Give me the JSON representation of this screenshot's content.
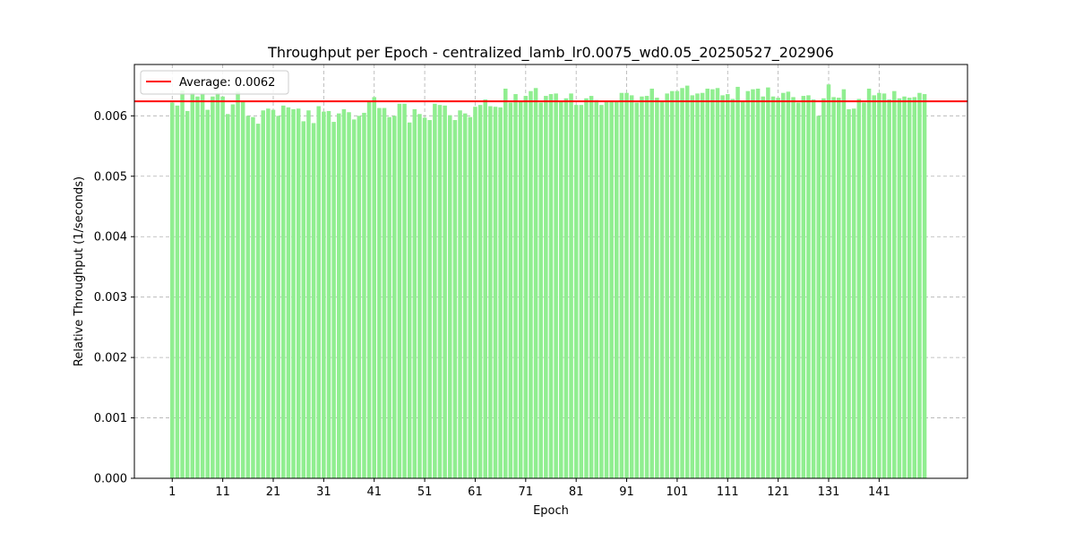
{
  "chart_data": {
    "type": "bar",
    "title": "Throughput per Epoch - centralized_lamb_lr0.0075_wd0.05_20250527_202906",
    "xlabel": "Epoch",
    "ylabel": "Relative Throughput (1/seconds)",
    "ylim": [
      0,
      0.00685
    ],
    "xlim": [
      -6.5,
      158.5
    ],
    "y_ticks": [
      0.0,
      0.001,
      0.002,
      0.003,
      0.004,
      0.005,
      0.006
    ],
    "y_tick_labels": [
      "0.000",
      "0.001",
      "0.002",
      "0.003",
      "0.004",
      "0.005",
      "0.006"
    ],
    "x_ticks": [
      1,
      11,
      21,
      31,
      41,
      51,
      61,
      71,
      81,
      91,
      101,
      111,
      121,
      131,
      141
    ],
    "x_tick_labels": [
      "1",
      "11",
      "21",
      "31",
      "41",
      "51",
      "61",
      "71",
      "81",
      "91",
      "101",
      "111",
      "121",
      "131",
      "141"
    ],
    "grid": true,
    "bar_color": "#90ee90",
    "average": {
      "value": 0.00624,
      "label": "Average: 0.0062",
      "color": "#ff0000"
    },
    "legend_position": "top-left",
    "x": [
      1,
      2,
      3,
      4,
      5,
      6,
      7,
      8,
      9,
      10,
      11,
      12,
      13,
      14,
      15,
      16,
      17,
      18,
      19,
      20,
      21,
      22,
      23,
      24,
      25,
      26,
      27,
      28,
      29,
      30,
      31,
      32,
      33,
      34,
      35,
      36,
      37,
      38,
      39,
      40,
      41,
      42,
      43,
      44,
      45,
      46,
      47,
      48,
      49,
      50,
      51,
      52,
      53,
      54,
      55,
      56,
      57,
      58,
      59,
      60,
      61,
      62,
      63,
      64,
      65,
      66,
      67,
      68,
      69,
      70,
      71,
      72,
      73,
      74,
      75,
      76,
      77,
      78,
      79,
      80,
      81,
      82,
      83,
      84,
      85,
      86,
      87,
      88,
      89,
      90,
      91,
      92,
      93,
      94,
      95,
      96,
      97,
      98,
      99,
      100,
      101,
      102,
      103,
      104,
      105,
      106,
      107,
      108,
      109,
      110,
      111,
      112,
      113,
      114,
      115,
      116,
      117,
      118,
      119,
      120,
      121,
      122,
      123,
      124,
      125,
      126,
      127,
      128,
      129,
      130,
      131,
      132,
      133,
      134,
      135,
      136,
      137,
      138,
      139,
      140,
      141,
      142,
      143,
      144,
      145,
      146,
      147,
      148,
      149,
      150
    ],
    "values": [
      0.00622,
      0.00617,
      0.00642,
      0.00608,
      0.00638,
      0.00632,
      0.00636,
      0.0061,
      0.00632,
      0.00638,
      0.00632,
      0.00603,
      0.00619,
      0.0064,
      0.00623,
      0.006,
      0.00598,
      0.00587,
      0.00609,
      0.00612,
      0.0061,
      0.006,
      0.00617,
      0.00614,
      0.00611,
      0.00612,
      0.00591,
      0.00609,
      0.00588,
      0.00616,
      0.00607,
      0.00608,
      0.0059,
      0.00604,
      0.00611,
      0.00606,
      0.00594,
      0.006,
      0.00605,
      0.00625,
      0.00631,
      0.00613,
      0.00613,
      0.00598,
      0.006,
      0.0062,
      0.0062,
      0.00589,
      0.00611,
      0.00603,
      0.00597,
      0.00593,
      0.0062,
      0.00618,
      0.00617,
      0.00601,
      0.00593,
      0.00609,
      0.00604,
      0.00598,
      0.00615,
      0.00618,
      0.00627,
      0.00616,
      0.00615,
      0.00614,
      0.00645,
      0.00622,
      0.00636,
      0.00624,
      0.00633,
      0.00641,
      0.00646,
      0.00622,
      0.00633,
      0.00636,
      0.00637,
      0.00624,
      0.00629,
      0.00637,
      0.00618,
      0.00618,
      0.00629,
      0.00633,
      0.00626,
      0.00618,
      0.00624,
      0.00625,
      0.00624,
      0.00638,
      0.00638,
      0.00634,
      0.00622,
      0.00632,
      0.00633,
      0.00645,
      0.0063,
      0.00623,
      0.00637,
      0.00641,
      0.00641,
      0.00646,
      0.0065,
      0.00634,
      0.00637,
      0.00638,
      0.00645,
      0.00644,
      0.00646,
      0.00634,
      0.00636,
      0.00628,
      0.00648,
      0.00623,
      0.00641,
      0.00644,
      0.00645,
      0.00632,
      0.00647,
      0.00632,
      0.0063,
      0.00638,
      0.0064,
      0.00631,
      0.00622,
      0.00633,
      0.00634,
      0.00627,
      0.006,
      0.00629,
      0.00652,
      0.00631,
      0.0063,
      0.00644,
      0.00611,
      0.00612,
      0.00628,
      0.00622,
      0.00645,
      0.00634,
      0.00638,
      0.00637,
      0.00627,
      0.00641,
      0.00629,
      0.00632,
      0.0063,
      0.00631,
      0.00638,
      0.00636
    ]
  }
}
